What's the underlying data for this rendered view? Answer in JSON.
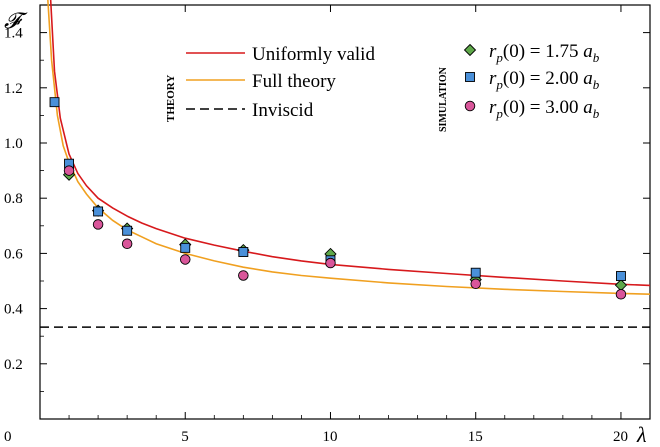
{
  "chart_data": {
    "type": "scatter",
    "xlabel": "λ",
    "ylabel": "𝓕",
    "xlim": [
      0,
      21
    ],
    "ylim": [
      0,
      1.5
    ],
    "x_ticks": [
      {
        "value": 0,
        "label": "0"
      },
      {
        "value": 5,
        "label": "5"
      },
      {
        "value": 10,
        "label": "10"
      },
      {
        "value": 15,
        "label": "15"
      },
      {
        "value": 20,
        "label": "20"
      }
    ],
    "y_ticks": [
      {
        "value": 0.2,
        "label": "0.2"
      },
      {
        "value": 0.4,
        "label": "0.4"
      },
      {
        "value": 0.6,
        "label": "0.6"
      },
      {
        "value": 0.8,
        "label": "0.8"
      },
      {
        "value": 1.0,
        "label": "1.0"
      },
      {
        "value": 1.2,
        "label": "1.2"
      },
      {
        "value": 1.4,
        "label": "1.4"
      }
    ],
    "theory_group_label": "THEORY",
    "simulation_group_label": "SIMULATION",
    "lines": [
      {
        "name": "Uniformly valid",
        "color": "#d7191c",
        "style": "solid",
        "x": [
          0.35,
          0.5,
          0.7,
          1.0,
          1.3,
          1.6,
          2.0,
          2.5,
          3.0,
          3.5,
          4.0,
          5.0,
          6.0,
          7.0,
          8.0,
          9.0,
          10.0,
          12.0,
          14.0,
          16.0,
          18.0,
          20.0,
          21.0
        ],
        "y": [
          1.55,
          1.26,
          1.09,
          0.96,
          0.89,
          0.845,
          0.8,
          0.765,
          0.735,
          0.71,
          0.69,
          0.655,
          0.63,
          0.608,
          0.588,
          0.573,
          0.56,
          0.542,
          0.527,
          0.513,
          0.5,
          0.488,
          0.484
        ]
      },
      {
        "name": "Full theory",
        "color": "#f0a020",
        "style": "solid",
        "x": [
          0.25,
          0.4,
          0.6,
          0.8,
          1.0,
          1.3,
          1.6,
          2.0,
          2.5,
          3.0,
          3.5,
          4.0,
          5.0,
          6.0,
          7.0,
          8.0,
          9.0,
          10.0,
          12.0,
          14.0,
          16.0,
          18.0,
          20.0,
          21.0
        ],
        "y": [
          1.55,
          1.3,
          1.1,
          0.99,
          0.93,
          0.86,
          0.815,
          0.765,
          0.72,
          0.685,
          0.66,
          0.635,
          0.6,
          0.573,
          0.55,
          0.533,
          0.52,
          0.51,
          0.493,
          0.48,
          0.47,
          0.462,
          0.455,
          0.452
        ]
      },
      {
        "name": "Inviscid",
        "color": "#000000",
        "style": "dashed",
        "x": [
          0,
          21
        ],
        "y": [
          0.333,
          0.333
        ]
      }
    ],
    "series": [
      {
        "name": "r_p(0) = 1.75 a_b",
        "name_parts": {
          "pre": "r",
          "sub": "p",
          "mid": "(0) = 1.75 ",
          "a": "a",
          "asub": "b"
        },
        "marker": "diamond",
        "color": "#5fa84a",
        "x": [
          1,
          2,
          3,
          5,
          7,
          10,
          15,
          20
        ],
        "y": [
          0.885,
          0.755,
          0.69,
          0.632,
          0.612,
          0.598,
          0.505,
          0.485
        ]
      },
      {
        "name": "r_p(0) = 2.00 a_b",
        "name_parts": {
          "pre": "r",
          "sub": "p",
          "mid": "(0) = 2.00 ",
          "a": "a",
          "asub": "b"
        },
        "marker": "square",
        "color": "#4a90d9",
        "x": [
          0.5,
          1,
          2,
          3,
          5,
          7,
          10,
          15,
          20
        ],
        "y": [
          1.148,
          0.925,
          0.752,
          0.682,
          0.62,
          0.605,
          0.575,
          0.53,
          0.518
        ]
      },
      {
        "name": "r_p(0) = 3.00 a_b",
        "name_parts": {
          "pre": "r",
          "sub": "p",
          "mid": "(0) = 3.00 ",
          "a": "a",
          "asub": "b"
        },
        "marker": "circle",
        "color": "#d9569a",
        "x": [
          1,
          2,
          3,
          5,
          7,
          10,
          15,
          20
        ],
        "y": [
          0.9,
          0.705,
          0.635,
          0.578,
          0.52,
          0.565,
          0.49,
          0.452
        ]
      }
    ],
    "grid": false,
    "legend_position": "top-right"
  }
}
